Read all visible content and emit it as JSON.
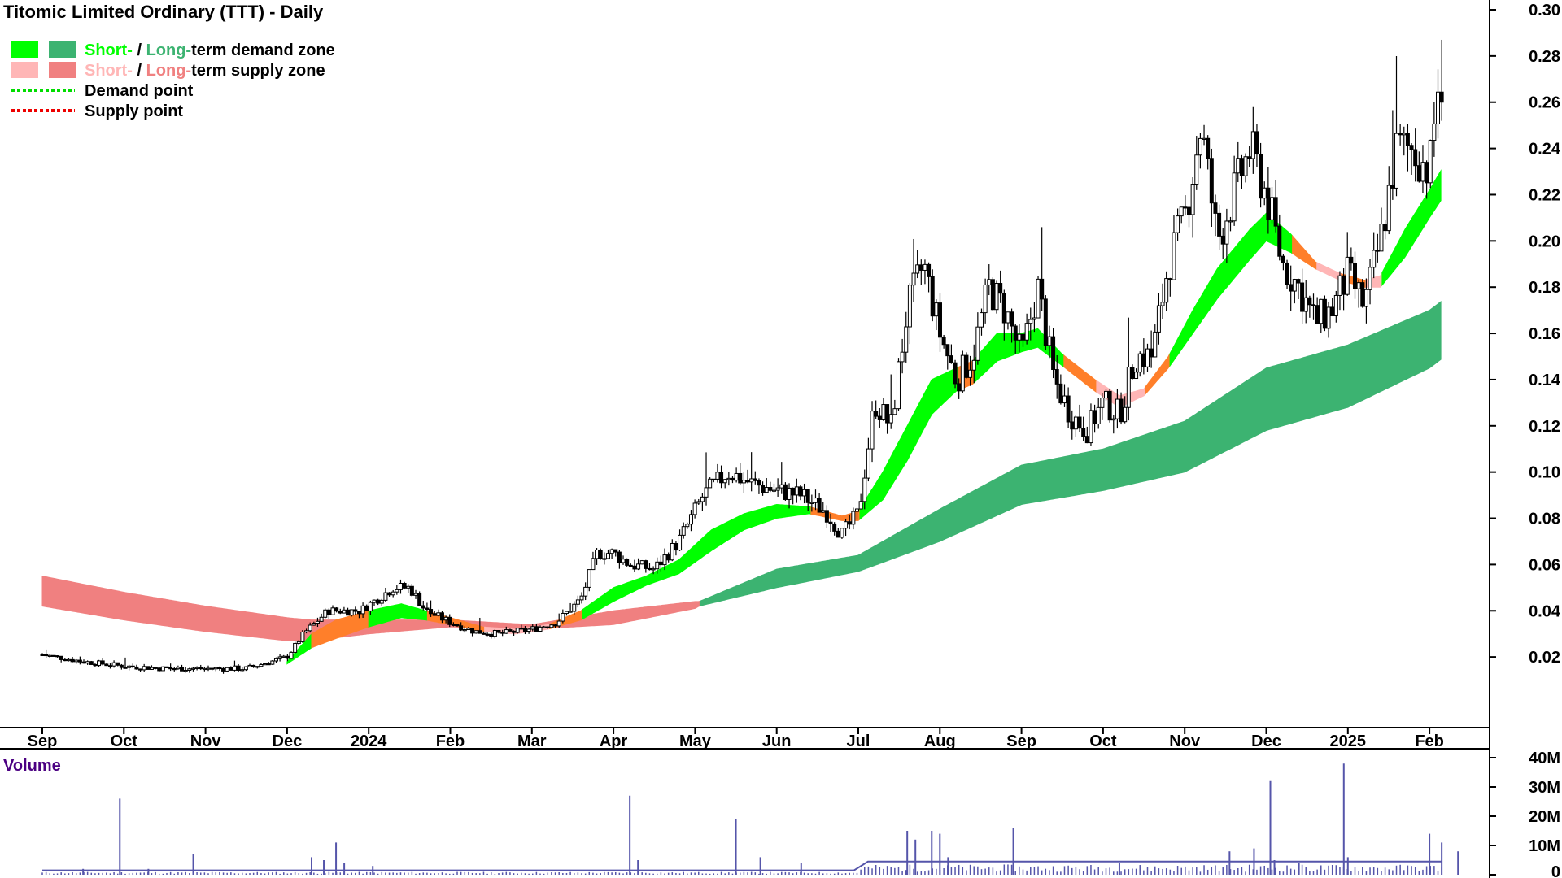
{
  "chart_data": {
    "type": "candlestick",
    "title": "Titomic Limited Ordinary (TTT) - Daily",
    "legend": [
      {
        "swatches": [
          "#00ff00",
          "#3cb371"
        ],
        "parts": [
          {
            "text": "Short-",
            "color": "#00ff00"
          },
          {
            "text": " / ",
            "color": "#000000"
          },
          {
            "text": "Long-",
            "color": "#3cb371"
          },
          {
            "text": "term demand zone",
            "color": "#000000"
          }
        ]
      },
      {
        "swatches": [
          "#ffb6b6",
          "#f08080"
        ],
        "parts": [
          {
            "text": "Short-",
            "color": "#ffb6b6"
          },
          {
            "text": " / ",
            "color": "#000000"
          },
          {
            "text": "Long-",
            "color": "#f08080"
          },
          {
            "text": "term supply zone",
            "color": "#000000"
          }
        ]
      },
      {
        "line_color": "#00dd00",
        "text": "Demand point"
      },
      {
        "line_color": "#ee0000",
        "text": "Supply point"
      }
    ],
    "x_months": [
      "Sep",
      "Oct",
      "Nov",
      "Dec",
      "2024",
      "Feb",
      "Mar",
      "Apr",
      "May",
      "Jun",
      "Jul",
      "Aug",
      "Sep",
      "Oct",
      "Nov",
      "Dec",
      "2025",
      "Feb"
    ],
    "y_ticks": [
      "0.30",
      "0.28",
      "0.26",
      "0.24",
      "0.22",
      "0.20",
      "0.18",
      "0.16",
      "0.14",
      "0.12",
      "0.10",
      "0.08",
      "0.06",
      "0.04",
      "0.02"
    ],
    "ylim": [
      0.0,
      0.3
    ],
    "price_anchors": [
      {
        "m": 0.0,
        "p": 0.021
      },
      {
        "m": 0.5,
        "p": 0.018
      },
      {
        "m": 1.0,
        "p": 0.016
      },
      {
        "m": 1.5,
        "p": 0.015
      },
      {
        "m": 2.0,
        "p": 0.015
      },
      {
        "m": 2.5,
        "p": 0.015
      },
      {
        "m": 3.0,
        "p": 0.02
      },
      {
        "m": 3.2,
        "p": 0.03
      },
      {
        "m": 3.5,
        "p": 0.04
      },
      {
        "m": 3.9,
        "p": 0.04
      },
      {
        "m": 4.1,
        "p": 0.045
      },
      {
        "m": 4.3,
        "p": 0.05
      },
      {
        "m": 4.5,
        "p": 0.05
      },
      {
        "m": 4.7,
        "p": 0.04
      },
      {
        "m": 5.0,
        "p": 0.035
      },
      {
        "m": 5.3,
        "p": 0.031
      },
      {
        "m": 5.6,
        "p": 0.03
      },
      {
        "m": 6.0,
        "p": 0.032
      },
      {
        "m": 6.3,
        "p": 0.035
      },
      {
        "m": 6.6,
        "p": 0.045
      },
      {
        "m": 6.8,
        "p": 0.065
      },
      {
        "m": 7.0,
        "p": 0.065
      },
      {
        "m": 7.2,
        "p": 0.06
      },
      {
        "m": 7.5,
        "p": 0.058
      },
      {
        "m": 7.8,
        "p": 0.07
      },
      {
        "m": 8.1,
        "p": 0.09
      },
      {
        "m": 8.4,
        "p": 0.1
      },
      {
        "m": 8.7,
        "p": 0.095
      },
      {
        "m": 9.0,
        "p": 0.092
      },
      {
        "m": 9.3,
        "p": 0.09
      },
      {
        "m": 9.6,
        "p": 0.083
      },
      {
        "m": 9.8,
        "p": 0.073
      },
      {
        "m": 10.0,
        "p": 0.082
      },
      {
        "m": 10.2,
        "p": 0.13
      },
      {
        "m": 10.4,
        "p": 0.12
      },
      {
        "m": 10.6,
        "p": 0.17
      },
      {
        "m": 10.8,
        "p": 0.19
      },
      {
        "m": 11.0,
        "p": 0.16
      },
      {
        "m": 11.2,
        "p": 0.14
      },
      {
        "m": 11.4,
        "p": 0.15
      },
      {
        "m": 11.6,
        "p": 0.18
      },
      {
        "m": 11.8,
        "p": 0.17
      },
      {
        "m": 12.0,
        "p": 0.15
      },
      {
        "m": 12.2,
        "p": 0.18
      },
      {
        "m": 12.4,
        "p": 0.14
      },
      {
        "m": 12.6,
        "p": 0.125
      },
      {
        "m": 12.8,
        "p": 0.118
      },
      {
        "m": 13.0,
        "p": 0.13
      },
      {
        "m": 13.2,
        "p": 0.125
      },
      {
        "m": 13.4,
        "p": 0.15
      },
      {
        "m": 13.6,
        "p": 0.15
      },
      {
        "m": 13.8,
        "p": 0.19
      },
      {
        "m": 14.0,
        "p": 0.21
      },
      {
        "m": 14.2,
        "p": 0.25
      },
      {
        "m": 14.4,
        "p": 0.2
      },
      {
        "m": 14.6,
        "p": 0.22
      },
      {
        "m": 14.8,
        "p": 0.24
      },
      {
        "m": 15.0,
        "p": 0.22
      },
      {
        "m": 15.2,
        "p": 0.19
      },
      {
        "m": 15.4,
        "p": 0.18
      },
      {
        "m": 15.6,
        "p": 0.165
      },
      {
        "m": 15.8,
        "p": 0.17
      },
      {
        "m": 16.0,
        "p": 0.185
      },
      {
        "m": 16.2,
        "p": 0.172
      },
      {
        "m": 16.4,
        "p": 0.2
      },
      {
        "m": 16.6,
        "p": 0.24
      },
      {
        "m": 16.8,
        "p": 0.24
      },
      {
        "m": 17.0,
        "p": 0.23
      },
      {
        "m": 17.15,
        "p": 0.285
      }
    ],
    "short_zone_anchors": [
      {
        "m": 3.0,
        "lo": 0.017,
        "hi": 0.018,
        "c": "demand"
      },
      {
        "m": 3.3,
        "lo": 0.024,
        "hi": 0.03,
        "c": "supply"
      },
      {
        "m": 3.6,
        "lo": 0.028,
        "hi": 0.036,
        "c": "supply"
      },
      {
        "m": 4.0,
        "lo": 0.033,
        "hi": 0.04,
        "c": "demand"
      },
      {
        "m": 4.4,
        "lo": 0.037,
        "hi": 0.043,
        "c": "demand"
      },
      {
        "m": 4.7,
        "lo": 0.036,
        "hi": 0.04,
        "c": "supply"
      },
      {
        "m": 5.0,
        "lo": 0.034,
        "hi": 0.037,
        "c": "supply"
      },
      {
        "m": 5.4,
        "lo": 0.031,
        "hi": 0.033,
        "c": "supply_light"
      },
      {
        "m": 5.8,
        "lo": 0.03,
        "hi": 0.032,
        "c": "supply_light"
      },
      {
        "m": 6.2,
        "lo": 0.032,
        "hi": 0.034,
        "c": "supply"
      },
      {
        "m": 6.6,
        "lo": 0.036,
        "hi": 0.04,
        "c": "demand"
      },
      {
        "m": 7.0,
        "lo": 0.044,
        "hi": 0.05,
        "c": "demand"
      },
      {
        "m": 7.4,
        "lo": 0.051,
        "hi": 0.055,
        "c": "demand"
      },
      {
        "m": 7.8,
        "lo": 0.056,
        "hi": 0.062,
        "c": "demand"
      },
      {
        "m": 8.2,
        "lo": 0.066,
        "hi": 0.075,
        "c": "demand"
      },
      {
        "m": 8.6,
        "lo": 0.075,
        "hi": 0.082,
        "c": "demand"
      },
      {
        "m": 9.0,
        "lo": 0.08,
        "hi": 0.086,
        "c": "demand"
      },
      {
        "m": 9.4,
        "lo": 0.082,
        "hi": 0.085,
        "c": "supply"
      },
      {
        "m": 9.8,
        "lo": 0.079,
        "hi": 0.081,
        "c": "supply"
      },
      {
        "m": 10.0,
        "lo": 0.079,
        "hi": 0.083,
        "c": "demand"
      },
      {
        "m": 10.3,
        "lo": 0.088,
        "hi": 0.1,
        "c": "demand"
      },
      {
        "m": 10.6,
        "lo": 0.105,
        "hi": 0.12,
        "c": "demand"
      },
      {
        "m": 10.9,
        "lo": 0.125,
        "hi": 0.14,
        "c": "demand"
      },
      {
        "m": 11.2,
        "lo": 0.135,
        "hi": 0.145,
        "c": "supply"
      },
      {
        "m": 11.4,
        "lo": 0.138,
        "hi": 0.148,
        "c": "demand"
      },
      {
        "m": 11.7,
        "lo": 0.148,
        "hi": 0.16,
        "c": "demand"
      },
      {
        "m": 12.0,
        "lo": 0.152,
        "hi": 0.16,
        "c": "demand"
      },
      {
        "m": 12.2,
        "lo": 0.154,
        "hi": 0.162,
        "c": "demand"
      },
      {
        "m": 12.5,
        "lo": 0.146,
        "hi": 0.151,
        "c": "supply"
      },
      {
        "m": 12.9,
        "lo": 0.135,
        "hi": 0.14,
        "c": "supply_light"
      },
      {
        "m": 13.2,
        "lo": 0.128,
        "hi": 0.133,
        "c": "supply_light"
      },
      {
        "m": 13.5,
        "lo": 0.133,
        "hi": 0.136,
        "c": "supply"
      },
      {
        "m": 13.8,
        "lo": 0.145,
        "hi": 0.15,
        "c": "demand"
      },
      {
        "m": 14.1,
        "lo": 0.16,
        "hi": 0.17,
        "c": "demand"
      },
      {
        "m": 14.4,
        "lo": 0.175,
        "hi": 0.188,
        "c": "demand"
      },
      {
        "m": 14.8,
        "lo": 0.192,
        "hi": 0.205,
        "c": "demand"
      },
      {
        "m": 15.0,
        "lo": 0.2,
        "hi": 0.212,
        "c": "demand"
      },
      {
        "m": 15.3,
        "lo": 0.195,
        "hi": 0.203,
        "c": "supply"
      },
      {
        "m": 15.6,
        "lo": 0.188,
        "hi": 0.191,
        "c": "supply_light"
      },
      {
        "m": 15.9,
        "lo": 0.183,
        "hi": 0.186,
        "c": "supply"
      },
      {
        "m": 16.2,
        "lo": 0.18,
        "hi": 0.183,
        "c": "supply_light"
      },
      {
        "m": 16.4,
        "lo": 0.18,
        "hi": 0.185,
        "c": "demand"
      },
      {
        "m": 16.7,
        "lo": 0.193,
        "hi": 0.205,
        "c": "demand"
      },
      {
        "m": 17.0,
        "lo": 0.21,
        "hi": 0.222,
        "c": "demand"
      },
      {
        "m": 17.15,
        "lo": 0.218,
        "hi": 0.231,
        "c": "demand"
      }
    ],
    "long_zone_anchors": [
      {
        "m": 0.0,
        "lo": 0.042,
        "hi": 0.055,
        "c": "supply"
      },
      {
        "m": 1.0,
        "lo": 0.036,
        "hi": 0.048,
        "c": "supply"
      },
      {
        "m": 2.0,
        "lo": 0.031,
        "hi": 0.042,
        "c": "supply"
      },
      {
        "m": 3.0,
        "lo": 0.027,
        "hi": 0.037,
        "c": "supply"
      },
      {
        "m": 3.3,
        "lo": 0.027,
        "hi": 0.036,
        "c": "supply"
      },
      {
        "m": 4.0,
        "lo": 0.03,
        "hi": 0.036,
        "c": "supply"
      },
      {
        "m": 5.0,
        "lo": 0.033,
        "hi": 0.036,
        "c": "supply"
      },
      {
        "m": 6.0,
        "lo": 0.032,
        "hi": 0.034,
        "c": "supply"
      },
      {
        "m": 7.0,
        "lo": 0.034,
        "hi": 0.04,
        "c": "supply"
      },
      {
        "m": 8.0,
        "lo": 0.041,
        "hi": 0.044,
        "c": "supply"
      },
      {
        "m": 8.05,
        "lo": 0.042,
        "hi": 0.044,
        "c": "demand"
      },
      {
        "m": 9.0,
        "lo": 0.05,
        "hi": 0.058,
        "c": "demand"
      },
      {
        "m": 10.0,
        "lo": 0.057,
        "hi": 0.064,
        "c": "demand"
      },
      {
        "m": 11.0,
        "lo": 0.07,
        "hi": 0.084,
        "c": "demand"
      },
      {
        "m": 12.0,
        "lo": 0.086,
        "hi": 0.103,
        "c": "demand"
      },
      {
        "m": 13.0,
        "lo": 0.092,
        "hi": 0.11,
        "c": "demand"
      },
      {
        "m": 14.0,
        "lo": 0.1,
        "hi": 0.122,
        "c": "demand"
      },
      {
        "m": 15.0,
        "lo": 0.118,
        "hi": 0.145,
        "c": "demand"
      },
      {
        "m": 16.0,
        "lo": 0.128,
        "hi": 0.155,
        "c": "demand"
      },
      {
        "m": 17.0,
        "lo": 0.145,
        "hi": 0.17,
        "c": "demand"
      },
      {
        "m": 17.15,
        "lo": 0.149,
        "hi": 0.174,
        "c": "demand"
      }
    ],
    "volume": {
      "label": "Volume",
      "ticks": [
        "40M",
        "30M",
        "20M",
        "10M",
        "0"
      ],
      "ylim": [
        0,
        40000000
      ],
      "spikes": [
        {
          "m": 0.5,
          "v": 2000000
        },
        {
          "m": 0.95,
          "v": 26000000
        },
        {
          "m": 1.3,
          "v": 2000000
        },
        {
          "m": 1.85,
          "v": 7000000
        },
        {
          "m": 3.3,
          "v": 6000000
        },
        {
          "m": 3.45,
          "v": 5000000
        },
        {
          "m": 3.6,
          "v": 11000000
        },
        {
          "m": 3.7,
          "v": 4000000
        },
        {
          "m": 4.05,
          "v": 3000000
        },
        {
          "m": 7.2,
          "v": 27000000
        },
        {
          "m": 7.3,
          "v": 5000000
        },
        {
          "m": 8.5,
          "v": 19000000
        },
        {
          "m": 8.8,
          "v": 6000000
        },
        {
          "m": 9.3,
          "v": 4000000
        },
        {
          "m": 10.6,
          "v": 15000000
        },
        {
          "m": 10.7,
          "v": 12000000
        },
        {
          "m": 10.9,
          "v": 15000000
        },
        {
          "m": 11.0,
          "v": 14000000
        },
        {
          "m": 11.1,
          "v": 6000000
        },
        {
          "m": 11.9,
          "v": 16000000
        },
        {
          "m": 13.2,
          "v": 4000000
        },
        {
          "m": 14.55,
          "v": 8000000
        },
        {
          "m": 14.85,
          "v": 9000000
        },
        {
          "m": 15.05,
          "v": 32000000
        },
        {
          "m": 15.1,
          "v": 5000000
        },
        {
          "m": 15.4,
          "v": 4000000
        },
        {
          "m": 15.95,
          "v": 38000000
        },
        {
          "m": 16.0,
          "v": 6000000
        },
        {
          "m": 17.0,
          "v": 14000000
        },
        {
          "m": 17.15,
          "v": 11000000
        },
        {
          "m": 17.35,
          "v": 8000000
        }
      ]
    }
  },
  "colors": {
    "demand_short": "#00ff00",
    "demand_long": "#3cb371",
    "supply_short": "#ff7f2a",
    "supply_light": "#ffb6b6",
    "supply_long": "#f08080",
    "volume": "#5555aa",
    "volume_label": "#4b0082"
  }
}
